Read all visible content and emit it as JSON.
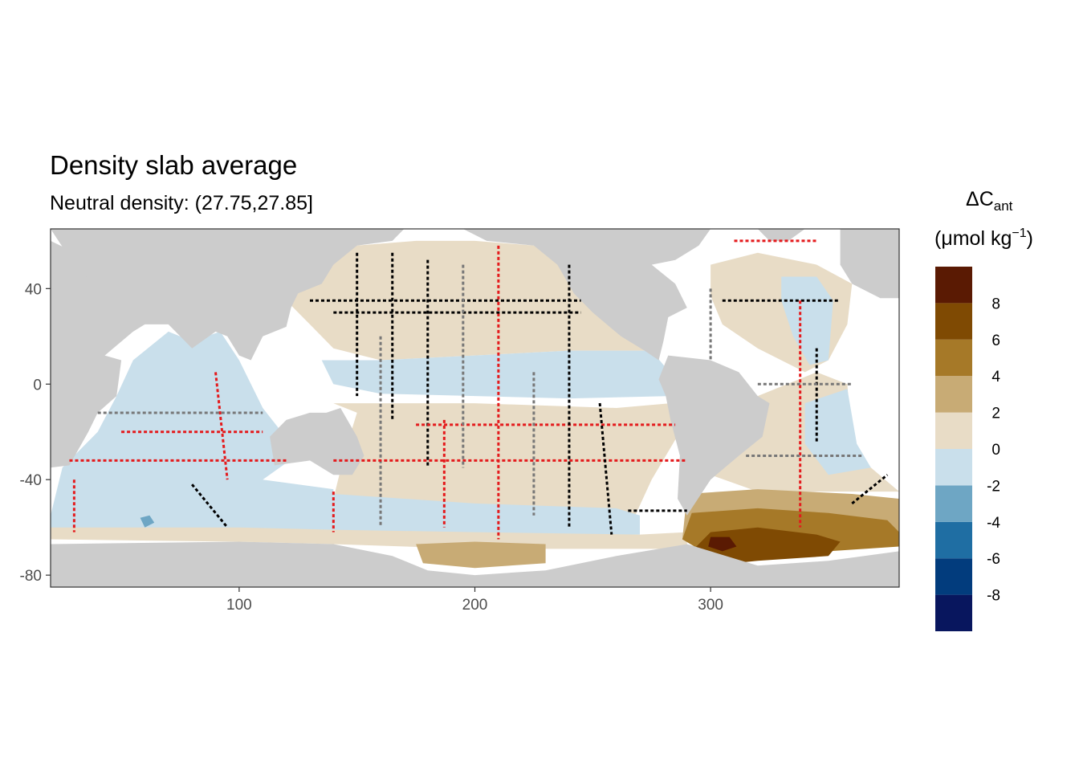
{
  "chart_data": {
    "type": "heatmap",
    "title": "Density slab average",
    "subtitle": "Neutral density: (27.75,27.85]",
    "xlabel": "",
    "ylabel": "",
    "xlim": [
      20,
      380
    ],
    "ylim": [
      -85,
      65
    ],
    "x_ticks": [
      100,
      200,
      300
    ],
    "x_tick_labels": [
      "100",
      "200",
      "300"
    ],
    "y_ticks": [
      40,
      0,
      -40,
      -80
    ],
    "y_tick_labels": [
      "40",
      "0",
      "-40",
      "-80"
    ],
    "grid": false,
    "legend_position": "right",
    "legend": {
      "title_main": "ΔC",
      "title_sub": "ant",
      "unit_prefix": "(μmol kg",
      "unit_sup": "−1",
      "unit_suffix": ")",
      "bins": [
        {
          "from": -10,
          "to": -8,
          "color": "#08165e"
        },
        {
          "from": -8,
          "to": -6,
          "color": "#023c7d"
        },
        {
          "from": -6,
          "to": -4,
          "color": "#1f6ea3"
        },
        {
          "from": -4,
          "to": -2,
          "color": "#6ea6c4"
        },
        {
          "from": -2,
          "to": 0,
          "color": "#c9dfeb"
        },
        {
          "from": 0,
          "to": 2,
          "color": "#e8dcc6"
        },
        {
          "from": 2,
          "to": 4,
          "color": "#c8ab75"
        },
        {
          "from": 4,
          "to": 6,
          "color": "#a67928"
        },
        {
          "from": 6,
          "to": 8,
          "color": "#7f4a03"
        },
        {
          "from": 8,
          "to": 10,
          "color": "#5a1a03"
        }
      ],
      "labels": [
        {
          "value": 8,
          "text": "8"
        },
        {
          "value": 6,
          "text": "6"
        },
        {
          "value": 4,
          "text": "4"
        },
        {
          "value": 2,
          "text": "2"
        },
        {
          "value": 0,
          "text": "0"
        },
        {
          "value": -2,
          "text": "-2"
        },
        {
          "value": -4,
          "text": "-4"
        },
        {
          "value": -6,
          "text": "-6"
        },
        {
          "value": -8,
          "text": "-8"
        }
      ]
    },
    "regions": [
      {
        "name": "indian-ocean-zone",
        "value": -1,
        "points": [
          [
            20,
            -55
          ],
          [
            25,
            -35
          ],
          [
            40,
            -20
          ],
          [
            48,
            -5
          ],
          [
            55,
            10
          ],
          [
            70,
            22
          ],
          [
            80,
            18
          ],
          [
            92,
            22
          ],
          [
            100,
            10
          ],
          [
            110,
            -10
          ],
          [
            118,
            -20
          ],
          [
            120,
            -33
          ],
          [
            110,
            -40
          ],
          [
            140,
            -44
          ],
          [
            140,
            -62
          ],
          [
            20,
            -62
          ]
        ]
      },
      {
        "name": "pacific-north-zone",
        "value": 1,
        "points": [
          [
            125,
            55
          ],
          [
            150,
            58
          ],
          [
            175,
            60
          ],
          [
            200,
            60
          ],
          [
            225,
            58
          ],
          [
            245,
            53
          ],
          [
            250,
            40
          ],
          [
            255,
            28
          ],
          [
            262,
            20
          ],
          [
            275,
            14
          ],
          [
            240,
            14
          ],
          [
            200,
            12
          ],
          [
            160,
            10
          ],
          [
            140,
            15
          ],
          [
            130,
            25
          ],
          [
            120,
            35
          ]
        ]
      },
      {
        "name": "pacific-equatorial-band",
        "value": -1,
        "points": [
          [
            135,
            10
          ],
          [
            160,
            10
          ],
          [
            200,
            12
          ],
          [
            240,
            14
          ],
          [
            275,
            14
          ],
          [
            285,
            2
          ],
          [
            283,
            -5
          ],
          [
            240,
            -6
          ],
          [
            200,
            -5
          ],
          [
            160,
            -4
          ],
          [
            140,
            0
          ]
        ]
      },
      {
        "name": "pacific-south-zone",
        "value": 1,
        "points": [
          [
            140,
            -8
          ],
          [
            200,
            -8
          ],
          [
            260,
            -10
          ],
          [
            283,
            -8
          ],
          [
            287,
            -20
          ],
          [
            275,
            -40
          ],
          [
            268,
            -55
          ],
          [
            240,
            -62
          ],
          [
            200,
            -62
          ],
          [
            155,
            -60
          ],
          [
            140,
            -48
          ],
          [
            145,
            -28
          ],
          [
            150,
            -12
          ]
        ]
      },
      {
        "name": "pacific-south-band",
        "value": -1,
        "points": [
          [
            140,
            -46
          ],
          [
            200,
            -50
          ],
          [
            260,
            -52
          ],
          [
            270,
            -55
          ],
          [
            270,
            -63
          ],
          [
            200,
            -63
          ],
          [
            160,
            -62
          ],
          [
            140,
            -62
          ]
        ]
      },
      {
        "name": "southern-ocean-strip",
        "value": 1,
        "points": [
          [
            20,
            -60
          ],
          [
            100,
            -60
          ],
          [
            140,
            -61
          ],
          [
            200,
            -62
          ],
          [
            270,
            -63
          ],
          [
            290,
            -62
          ],
          [
            290,
            -69
          ],
          [
            200,
            -69
          ],
          [
            140,
            -67
          ],
          [
            100,
            -66
          ],
          [
            20,
            -65
          ]
        ]
      },
      {
        "name": "ross-sea-patch",
        "value": 3,
        "points": [
          [
            175,
            -67
          ],
          [
            200,
            -66
          ],
          [
            230,
            -67
          ],
          [
            230,
            -75
          ],
          [
            200,
            -77
          ],
          [
            178,
            -75
          ]
        ]
      },
      {
        "name": "north-atlantic-zone",
        "value": 1,
        "points": [
          [
            300,
            50
          ],
          [
            320,
            55
          ],
          [
            345,
            50
          ],
          [
            360,
            42
          ],
          [
            358,
            25
          ],
          [
            350,
            10
          ],
          [
            340,
            5
          ],
          [
            320,
            15
          ],
          [
            305,
            25
          ],
          [
            300,
            37
          ]
        ]
      },
      {
        "name": "atlantic-east-band",
        "value": -1,
        "points": [
          [
            330,
            45
          ],
          [
            345,
            45
          ],
          [
            352,
            35
          ],
          [
            350,
            10
          ],
          [
            342,
            8
          ],
          [
            335,
            20
          ],
          [
            330,
            35
          ]
        ]
      },
      {
        "name": "south-atlantic-zone",
        "value": 1,
        "points": [
          [
            300,
            -20
          ],
          [
            320,
            -5
          ],
          [
            345,
            5
          ],
          [
            358,
            0
          ],
          [
            360,
            -25
          ],
          [
            368,
            -35
          ],
          [
            380,
            -45
          ],
          [
            320,
            -45
          ],
          [
            300,
            -38
          ],
          [
            295,
            -30
          ]
        ]
      },
      {
        "name": "south-atlantic-band",
        "value": -1,
        "points": [
          [
            340,
            -8
          ],
          [
            358,
            -2
          ],
          [
            362,
            -25
          ],
          [
            368,
            -35
          ],
          [
            350,
            -38
          ],
          [
            340,
            -25
          ]
        ]
      },
      {
        "name": "weddell-sector-light",
        "value": 3,
        "points": [
          [
            290,
            -46
          ],
          [
            320,
            -44
          ],
          [
            360,
            -46
          ],
          [
            380,
            -48
          ],
          [
            380,
            -65
          ],
          [
            340,
            -70
          ],
          [
            300,
            -70
          ],
          [
            288,
            -65
          ]
        ]
      },
      {
        "name": "weddell-sector-mid",
        "value": 5,
        "points": [
          [
            292,
            -54
          ],
          [
            320,
            -52
          ],
          [
            350,
            -54
          ],
          [
            375,
            -57
          ],
          [
            380,
            -62
          ],
          [
            380,
            -68
          ],
          [
            350,
            -70
          ],
          [
            300,
            -72
          ],
          [
            288,
            -65
          ]
        ]
      },
      {
        "name": "weddell-sector-dark",
        "value": 7,
        "points": [
          [
            300,
            -62
          ],
          [
            320,
            -60
          ],
          [
            345,
            -63
          ],
          [
            355,
            -66
          ],
          [
            350,
            -72
          ],
          [
            320,
            -74
          ],
          [
            300,
            -76
          ],
          [
            290,
            -72
          ]
        ]
      },
      {
        "name": "weddell-core",
        "value": 9,
        "points": [
          [
            300,
            -64
          ],
          [
            308,
            -64
          ],
          [
            311,
            -68
          ],
          [
            305,
            -70
          ],
          [
            299,
            -68
          ]
        ]
      },
      {
        "name": "southwest-pacific-patch",
        "value": -3,
        "points": [
          [
            58,
            -56
          ],
          [
            62,
            -55
          ],
          [
            64,
            -58
          ],
          [
            60,
            -60
          ]
        ]
      }
    ],
    "land": [
      {
        "name": "africa",
        "points": [
          [
            20,
            65
          ],
          [
            20,
            -35
          ],
          [
            28,
            -34
          ],
          [
            36,
            -20
          ],
          [
            40,
            -12
          ],
          [
            48,
            -5
          ],
          [
            50,
            10
          ],
          [
            43,
            12
          ],
          [
            55,
            22
          ],
          [
            60,
            25
          ],
          [
            55,
            40
          ],
          [
            45,
            48
          ],
          [
            20,
            60
          ]
        ]
      },
      {
        "name": "eurasia",
        "points": [
          [
            20,
            65
          ],
          [
            170,
            65
          ],
          [
            165,
            60
          ],
          [
            150,
            58
          ],
          [
            140,
            50
          ],
          [
            135,
            42
          ],
          [
            125,
            38
          ],
          [
            122,
            32
          ],
          [
            120,
            24
          ],
          [
            110,
            20
          ],
          [
            105,
            10
          ],
          [
            100,
            12
          ],
          [
            95,
            20
          ],
          [
            90,
            22
          ],
          [
            80,
            15
          ],
          [
            75,
            20
          ],
          [
            70,
            25
          ],
          [
            58,
            25
          ],
          [
            50,
            30
          ],
          [
            40,
            40
          ],
          [
            30,
            50
          ]
        ]
      },
      {
        "name": "australia",
        "points": [
          [
            113,
            -22
          ],
          [
            120,
            -15
          ],
          [
            130,
            -12
          ],
          [
            137,
            -12
          ],
          [
            143,
            -10
          ],
          [
            150,
            -22
          ],
          [
            153,
            -30
          ],
          [
            148,
            -38
          ],
          [
            140,
            -38
          ],
          [
            130,
            -32
          ],
          [
            115,
            -34
          ]
        ]
      },
      {
        "name": "north-america",
        "points": [
          [
            195,
            65
          ],
          [
            240,
            65
          ],
          [
            300,
            65
          ],
          [
            295,
            58
          ],
          [
            285,
            52
          ],
          [
            275,
            50
          ],
          [
            285,
            42
          ],
          [
            290,
            32
          ],
          [
            282,
            28
          ],
          [
            280,
            18
          ],
          [
            278,
            10
          ],
          [
            272,
            14
          ],
          [
            262,
            20
          ],
          [
            250,
            30
          ],
          [
            242,
            38
          ],
          [
            235,
            50
          ],
          [
            225,
            58
          ],
          [
            205,
            60
          ]
        ]
      },
      {
        "name": "south-america",
        "points": [
          [
            282,
            12
          ],
          [
            300,
            10
          ],
          [
            312,
            5
          ],
          [
            320,
            -5
          ],
          [
            325,
            -8
          ],
          [
            322,
            -22
          ],
          [
            312,
            -30
          ],
          [
            300,
            -40
          ],
          [
            292,
            -52
          ],
          [
            290,
            -55
          ],
          [
            286,
            -48
          ],
          [
            287,
            -30
          ],
          [
            283,
            -15
          ],
          [
            281,
            -5
          ],
          [
            278,
            2
          ]
        ]
      },
      {
        "name": "greenland",
        "points": [
          [
            320,
            65
          ],
          [
            340,
            65
          ],
          [
            333,
            60
          ],
          [
            325,
            60
          ]
        ]
      },
      {
        "name": "europe-west",
        "points": [
          [
            355,
            65
          ],
          [
            380,
            65
          ],
          [
            380,
            36
          ],
          [
            372,
            36
          ],
          [
            360,
            42
          ],
          [
            355,
            50
          ]
        ]
      },
      {
        "name": "antarctica",
        "points": [
          [
            20,
            -67
          ],
          [
            100,
            -66
          ],
          [
            140,
            -67
          ],
          [
            165,
            -72
          ],
          [
            180,
            -78
          ],
          [
            200,
            -80
          ],
          [
            230,
            -78
          ],
          [
            260,
            -72
          ],
          [
            290,
            -67
          ],
          [
            300,
            -70
          ],
          [
            320,
            -76
          ],
          [
            350,
            -74
          ],
          [
            380,
            -70
          ],
          [
            380,
            -85
          ],
          [
            20,
            -85
          ]
        ]
      }
    ]
  }
}
